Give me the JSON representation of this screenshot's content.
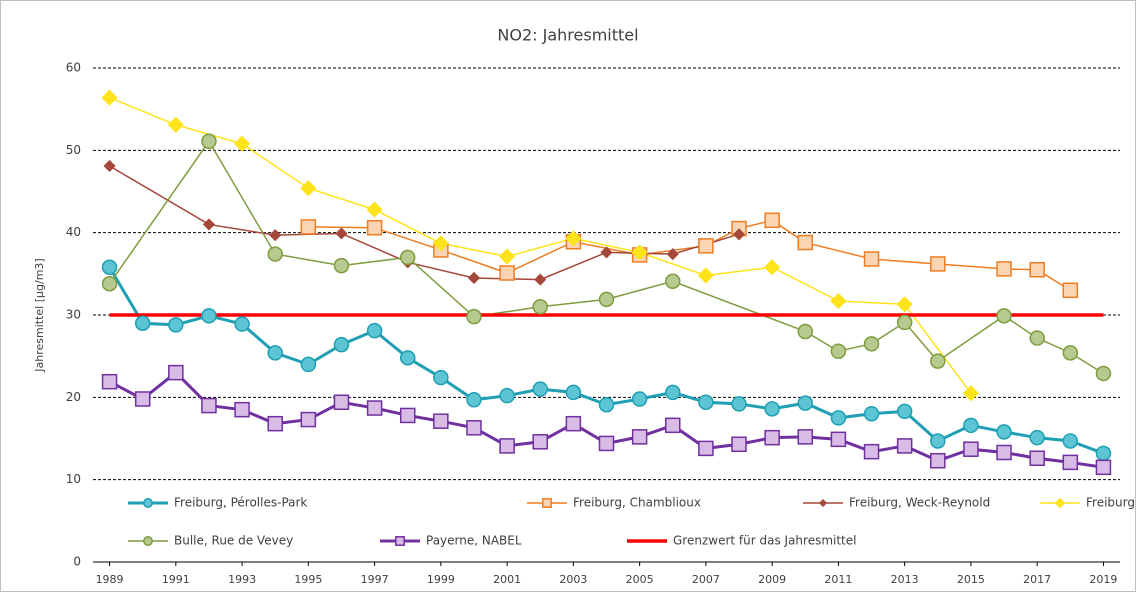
{
  "chart_data": {
    "type": "line",
    "title": "NO2: Jahresmittel",
    "y_label": "Jahresmittel [µg/m3]",
    "xlim": [
      1988.5,
      2019.5
    ],
    "xticks": [
      1989,
      1991,
      1993,
      1995,
      1997,
      1999,
      2001,
      2003,
      2005,
      2007,
      2009,
      2011,
      2013,
      2015,
      2017,
      2019
    ],
    "ylim": [
      0,
      60
    ],
    "yticks": [
      0,
      10,
      20,
      30,
      40,
      50,
      60
    ],
    "grid": true,
    "legend": "bottom",
    "series": [
      {
        "name": "Freiburg, Pérolles-Park",
        "color": "#1f9fb4",
        "marker_fill": "#5cc4d3",
        "marker": "circle",
        "line_width": 3,
        "x": [
          1989,
          1990,
          1991,
          1992,
          1993,
          1994,
          1995,
          1996,
          1997,
          1998,
          1999,
          2000,
          2001,
          2002,
          2003,
          2004,
          2005,
          2006,
          2007,
          2008,
          2009,
          2010,
          2011,
          2012,
          2013,
          2014,
          2015,
          2016,
          2017,
          2018,
          2019
        ],
        "values": [
          35.8,
          29,
          28.8,
          29.9,
          28.9,
          25.4,
          24,
          26.4,
          28.1,
          24.8,
          22.4,
          19.7,
          20.2,
          21,
          20.6,
          19.1,
          19.8,
          20.6,
          19.4,
          19.2,
          18.6,
          19.3,
          17.5,
          18,
          18.3,
          14.7,
          16.6,
          15.8,
          15.1,
          14.7,
          13.2
        ]
      },
      {
        "name": "Freiburg, Chamblioux",
        "color": "#ef7d22",
        "marker_fill": "#fbd5b3",
        "marker": "square",
        "line_width": 1.5,
        "x": [
          1995,
          1997,
          1999,
          2001,
          2003,
          2005,
          2007,
          2008,
          2009,
          2010,
          2012,
          2014,
          2016,
          2017,
          2018
        ],
        "values": [
          40.7,
          40.6,
          37.9,
          35.1,
          38.9,
          37.3,
          38.4,
          40.5,
          41.5,
          38.8,
          36.8,
          36.2,
          35.6,
          35.5,
          33
        ]
      },
      {
        "name": "Freiburg, Weck-Reynold",
        "color": "#a5473b",
        "marker_fill": "#a5473b",
        "marker": "diamond",
        "line_width": 1.5,
        "x": [
          1989,
          1992,
          1994,
          1996,
          1998,
          2000,
          2002,
          2004,
          2006,
          2008
        ],
        "values": [
          48.1,
          41,
          39.7,
          39.9,
          36.4,
          34.5,
          34.3,
          37.6,
          37.4,
          39.8
        ]
      },
      {
        "name": "Freiburg, Burg-Quartier",
        "color": "#ffe31a",
        "marker_fill": "#ffe31a",
        "marker": "diamond",
        "line_width": 1.5,
        "x": [
          1989,
          1991,
          1993,
          1995,
          1997,
          1999,
          2001,
          2003,
          2005,
          2007,
          2009,
          2011,
          2013,
          2015
        ],
        "values": [
          56.4,
          53.1,
          50.8,
          45.4,
          42.8,
          38.7,
          37.1,
          39.3,
          37.6,
          34.8,
          35.8,
          31.7,
          31.3,
          20.5
        ]
      },
      {
        "name": "Bulle, Rue de Vevey",
        "color": "#7f9c3f",
        "marker_fill": "#b6c98e",
        "marker": "circle",
        "line_width": 1.5,
        "x": [
          1989,
          1992,
          1994,
          1996,
          1998,
          2000,
          2002,
          2004,
          2006,
          2010,
          2011,
          2012,
          2013,
          2014,
          2016,
          2017,
          2018,
          2019
        ],
        "values": [
          33.8,
          51.1,
          37.4,
          36,
          37,
          29.8,
          31,
          31.9,
          34.1,
          28,
          25.6,
          26.5,
          29.1,
          24.4,
          29.9,
          27.2,
          25.4,
          22.9
        ]
      },
      {
        "name": "Payerne, NABEL",
        "color": "#7030a0",
        "marker_fill": "#d8bce6",
        "marker": "square",
        "line_width": 3,
        "x": [
          1989,
          1990,
          1991,
          1992,
          1993,
          1994,
          1995,
          1996,
          1997,
          1998,
          1999,
          2000,
          2001,
          2002,
          2003,
          2004,
          2005,
          2006,
          2007,
          2008,
          2009,
          2010,
          2011,
          2012,
          2013,
          2014,
          2015,
          2016,
          2017,
          2018,
          2019
        ],
        "values": [
          21.9,
          19.8,
          23,
          19,
          18.5,
          16.8,
          17.3,
          19.4,
          18.7,
          17.8,
          17.1,
          16.3,
          14.1,
          14.6,
          16.8,
          14.4,
          15.2,
          16.6,
          13.8,
          14.3,
          15.1,
          15.2,
          14.9,
          13.4,
          14.1,
          12.3,
          13.7,
          13.3,
          12.6,
          12.1,
          11.5
        ]
      },
      {
        "name": "Grenzwert für das Jahresmittel",
        "color": "#ff0000",
        "marker": "none",
        "line_width": 3.5,
        "x": [
          1989,
          2019
        ],
        "values": [
          30,
          30
        ]
      }
    ]
  }
}
